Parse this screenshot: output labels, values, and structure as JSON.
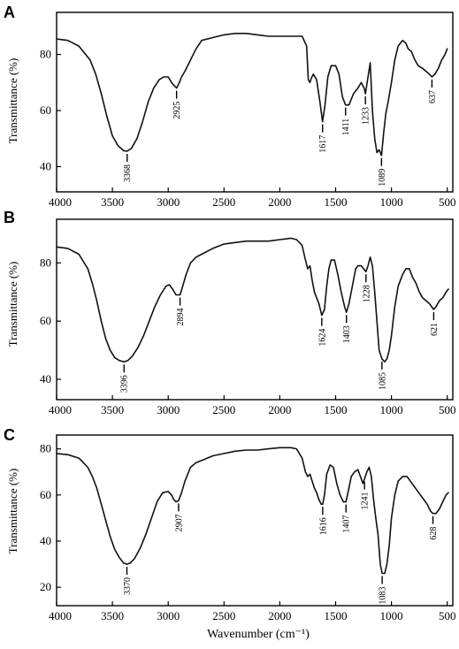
{
  "figure": {
    "x_axis_label": "Wavenumber (cm⁻¹)",
    "y_axis_label": "Transmittance (%)"
  },
  "chart_data": [
    {
      "type": "line",
      "panel": "A",
      "xlabel": "",
      "ylabel": "Transmittance (%)",
      "xlim": [
        4000,
        450
      ],
      "ylim": [
        31,
        95
      ],
      "x_ticks": [
        "4000",
        "3500",
        "3000",
        "2500",
        "2000",
        "1500",
        "1000",
        "500"
      ],
      "y_ticks": [
        "40",
        "60",
        "80"
      ],
      "y_tick_values": [
        40,
        60,
        80
      ],
      "series": [
        {
          "x": [
            4000,
            3900,
            3800,
            3700,
            3650,
            3600,
            3550,
            3500,
            3450,
            3400,
            3368,
            3330,
            3280,
            3230,
            3180,
            3130,
            3080,
            3040,
            3000,
            2970,
            2950,
            2925,
            2900,
            2880,
            2850,
            2800,
            2750,
            2700,
            2600,
            2500,
            2400,
            2300,
            2200,
            2100,
            2000,
            1900,
            1800,
            1760,
            1745,
            1730,
            1718,
            1700,
            1670,
            1640,
            1617,
            1595,
            1570,
            1540,
            1500,
            1470,
            1440,
            1411,
            1380,
            1340,
            1300,
            1270,
            1245,
            1233,
            1210,
            1190,
            1170,
            1150,
            1130,
            1110,
            1089,
            1070,
            1050,
            1030,
            1000,
            970,
            940,
            900,
            870,
            850,
            820,
            790,
            760,
            720,
            690,
            660,
            637,
            610,
            580,
            550,
            520,
            500
          ],
          "y": [
            85.5,
            85,
            83,
            78,
            73,
            66,
            58,
            51,
            47.5,
            45.7,
            45.5,
            46.5,
            50,
            56,
            63,
            68,
            71,
            72,
            72,
            70,
            69,
            68,
            70,
            72,
            74,
            78,
            82,
            85,
            86,
            87,
            87.5,
            87.5,
            87,
            86.5,
            86.5,
            86.5,
            86.5,
            83,
            71,
            70,
            71.5,
            73,
            71,
            63,
            56,
            62,
            72,
            76,
            76,
            73,
            65,
            62,
            62,
            66,
            68,
            70,
            68,
            66,
            72,
            77,
            60,
            50,
            45,
            46,
            44,
            52,
            59,
            63,
            70,
            78,
            83,
            85,
            84,
            82,
            81,
            78,
            76,
            75,
            74,
            73,
            72,
            73,
            75,
            78,
            80,
            82
          ]
        }
      ],
      "annotations": [
        {
          "text": "3368",
          "x": 3368,
          "y": 45.5
        },
        {
          "text": "2925",
          "x": 2925,
          "y": 68
        },
        {
          "text": "1617",
          "x": 1617,
          "y": 56
        },
        {
          "text": "1411",
          "x": 1411,
          "y": 62
        },
        {
          "text": "1233",
          "x": 1233,
          "y": 66
        },
        {
          "text": "1089",
          "x": 1089,
          "y": 44
        },
        {
          "text": "637",
          "x": 637,
          "y": 72
        }
      ]
    },
    {
      "type": "line",
      "panel": "B",
      "xlabel": "",
      "ylabel": "Transmittance (%)",
      "xlim": [
        4000,
        450
      ],
      "ylim": [
        33,
        95
      ],
      "x_ticks": [
        "4000",
        "3500",
        "3000",
        "2500",
        "2000",
        "1500",
        "1000",
        "500"
      ],
      "y_ticks": [
        "40",
        "60",
        "80"
      ],
      "y_tick_values": [
        40,
        60,
        80
      ],
      "series": [
        {
          "x": [
            4000,
            3900,
            3800,
            3720,
            3680,
            3640,
            3600,
            3560,
            3520,
            3480,
            3440,
            3396,
            3360,
            3320,
            3270,
            3220,
            3170,
            3120,
            3070,
            3020,
            2990,
            2960,
            2930,
            2894,
            2870,
            2840,
            2800,
            2750,
            2700,
            2600,
            2500,
            2400,
            2300,
            2200,
            2100,
            2000,
            1900,
            1850,
            1800,
            1770,
            1750,
            1730,
            1710,
            1690,
            1670,
            1650,
            1624,
            1600,
            1580,
            1560,
            1540,
            1510,
            1480,
            1450,
            1420,
            1403,
            1380,
            1350,
            1320,
            1300,
            1270,
            1250,
            1228,
            1210,
            1190,
            1170,
            1150,
            1130,
            1110,
            1085,
            1060,
            1040,
            1020,
            1000,
            970,
            940,
            900,
            870,
            840,
            810,
            780,
            750,
            720,
            690,
            660,
            621,
            600,
            570,
            540,
            510,
            490
          ],
          "y": [
            85.5,
            85,
            83,
            78,
            73,
            67,
            60,
            54,
            50,
            47.5,
            46.5,
            46,
            46.5,
            48,
            51,
            55,
            60,
            65,
            69,
            72,
            72.5,
            71,
            69,
            69,
            72,
            76,
            80,
            82,
            83,
            85,
            86.5,
            87,
            87.5,
            87.5,
            87.5,
            88,
            88.5,
            88,
            86,
            81,
            78,
            79,
            74,
            70,
            68,
            66,
            62,
            64,
            72,
            78,
            81,
            81,
            76,
            70,
            65,
            63,
            66,
            72,
            78,
            79,
            79,
            78,
            77,
            79,
            82,
            79,
            70,
            60,
            50,
            47,
            46,
            47,
            50,
            55,
            65,
            72,
            76,
            78,
            78,
            75,
            73,
            70,
            68,
            67,
            66,
            64,
            65,
            67,
            68,
            70,
            71
          ]
        }
      ],
      "annotations": [
        {
          "text": "3396",
          "x": 3396,
          "y": 46
        },
        {
          "text": "2894",
          "x": 2894,
          "y": 69
        },
        {
          "text": "1624",
          "x": 1624,
          "y": 62
        },
        {
          "text": "1403",
          "x": 1403,
          "y": 63
        },
        {
          "text": "1228",
          "x": 1228,
          "y": 77
        },
        {
          "text": "1085",
          "x": 1085,
          "y": 47
        },
        {
          "text": "621",
          "x": 621,
          "y": 64
        }
      ]
    },
    {
      "type": "line",
      "panel": "C",
      "xlabel": "Wavenumber (cm⁻¹)",
      "ylabel": "Transmittance (%)",
      "xlim": [
        4000,
        450
      ],
      "ylim": [
        12,
        86
      ],
      "x_ticks": [
        "4000",
        "3500",
        "3000",
        "2500",
        "2000",
        "1500",
        "1000",
        "500"
      ],
      "y_ticks": [
        "20",
        "40",
        "60",
        "80"
      ],
      "y_tick_values": [
        20,
        40,
        60,
        80
      ],
      "series": [
        {
          "x": [
            4000,
            3900,
            3800,
            3720,
            3680,
            3640,
            3600,
            3560,
            3520,
            3480,
            3440,
            3400,
            3370,
            3340,
            3300,
            3250,
            3200,
            3150,
            3100,
            3050,
            3000,
            2970,
            2950,
            2930,
            2907,
            2880,
            2850,
            2800,
            2750,
            2700,
            2600,
            2500,
            2400,
            2300,
            2200,
            2100,
            2000,
            1900,
            1850,
            1800,
            1770,
            1750,
            1730,
            1710,
            1690,
            1670,
            1650,
            1630,
            1616,
            1600,
            1580,
            1550,
            1520,
            1490,
            1460,
            1430,
            1407,
            1385,
            1360,
            1330,
            1300,
            1270,
            1255,
            1241,
            1220,
            1200,
            1180,
            1160,
            1140,
            1120,
            1100,
            1083,
            1060,
            1040,
            1020,
            1000,
            970,
            940,
            900,
            860,
            830,
            800,
            770,
            740,
            710,
            680,
            650,
            628,
            600,
            570,
            540,
            510,
            490
          ],
          "y": [
            78,
            77.5,
            76,
            72,
            68,
            63,
            56,
            49,
            42,
            36.5,
            33,
            30.5,
            30,
            30.5,
            32.5,
            37,
            43,
            50,
            57,
            61,
            61.5,
            60,
            58,
            57,
            57.5,
            61,
            66,
            72,
            74,
            75,
            77,
            78,
            79,
            79.5,
            79.5,
            80,
            80.5,
            80.5,
            80,
            76,
            70,
            68,
            69,
            66,
            63,
            61,
            58,
            56,
            56,
            60,
            69,
            73,
            72,
            65,
            60,
            57,
            57,
            62,
            68,
            70,
            71,
            67,
            65,
            67,
            70,
            72,
            68,
            58,
            50,
            43,
            30,
            26,
            26,
            30,
            38,
            50,
            60,
            66,
            68,
            68,
            66,
            64,
            62,
            60,
            58,
            56,
            53,
            52,
            52,
            54,
            57,
            60,
            61
          ]
        }
      ],
      "annotations": [
        {
          "text": "3370",
          "x": 3370,
          "y": 30
        },
        {
          "text": "2907",
          "x": 2907,
          "y": 57.5
        },
        {
          "text": "1616",
          "x": 1616,
          "y": 56
        },
        {
          "text": "1407",
          "x": 1407,
          "y": 57
        },
        {
          "text": "1241",
          "x": 1241,
          "y": 67
        },
        {
          "text": "1083",
          "x": 1083,
          "y": 26
        },
        {
          "text": "628",
          "x": 628,
          "y": 52
        }
      ]
    }
  ]
}
